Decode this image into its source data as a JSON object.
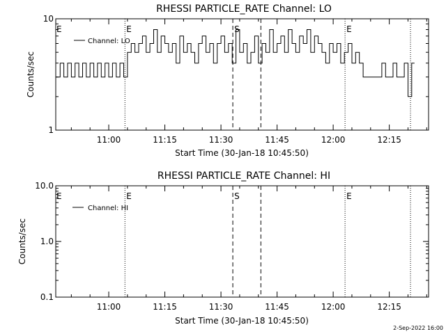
{
  "chart_data": [
    {
      "type": "line",
      "title": "RHESSI PARTICLE_RATE Channel: LO",
      "xlabel": "Start Time (30-Jan-18 10:45:50)",
      "ylabel": "Counts/sec",
      "yscale": "log",
      "xlim": [
        "10:45:50",
        "12:25:30"
      ],
      "ylim": [
        1,
        10
      ],
      "x_ticks": [
        "11:00",
        "11:15",
        "11:30",
        "11:45",
        "12:00",
        "12:15"
      ],
      "y_ticks": [
        "1",
        "10"
      ],
      "legend": {
        "entries": [
          "Channel: LO"
        ],
        "placement": "top-left"
      },
      "markers": [
        {
          "time": "11:04:20",
          "label": "E",
          "style": "dotted"
        },
        {
          "time": "11:33:10",
          "label": "S",
          "style": "dashed"
        },
        {
          "time": "11:40:40",
          "label": "",
          "style": "dashed"
        },
        {
          "time": "12:03:10",
          "label": "E",
          "style": "dotted"
        },
        {
          "time": "12:20:40",
          "label": "",
          "style": "dotted"
        }
      ],
      "series": [
        {
          "name": "Channel: LO",
          "x": [
            "10:45:50",
            "10:47:00",
            "10:48:00",
            "10:49:00",
            "10:50:00",
            "10:51:00",
            "10:52:00",
            "10:53:00",
            "10:54:00",
            "10:55:00",
            "10:56:00",
            "10:57:00",
            "10:58:00",
            "10:59:00",
            "11:00:00",
            "11:01:00",
            "11:02:00",
            "11:03:00",
            "11:04:00",
            "11:05:00",
            "11:06:00",
            "11:07:00",
            "11:08:00",
            "11:09:00",
            "11:10:00",
            "11:11:00",
            "11:12:00",
            "11:13:00",
            "11:14:00",
            "11:15:00",
            "11:16:00",
            "11:17:00",
            "11:18:00",
            "11:19:00",
            "11:20:00",
            "11:21:00",
            "11:22:00",
            "11:23:00",
            "11:24:00",
            "11:25:00",
            "11:26:00",
            "11:27:00",
            "11:28:00",
            "11:29:00",
            "11:30:00",
            "11:31:00",
            "11:32:00",
            "11:33:00",
            "11:34:00",
            "11:35:00",
            "11:36:00",
            "11:37:00",
            "11:38:00",
            "11:39:00",
            "11:40:00",
            "11:41:00",
            "11:42:00",
            "11:43:00",
            "11:44:00",
            "11:45:00",
            "11:46:00",
            "11:47:00",
            "11:48:00",
            "11:49:00",
            "11:50:00",
            "11:51:00",
            "11:52:00",
            "11:53:00",
            "11:54:00",
            "11:55:00",
            "11:56:00",
            "11:57:00",
            "11:58:00",
            "11:59:00",
            "12:00:00",
            "12:01:00",
            "12:02:00",
            "12:03:00",
            "12:04:00",
            "12:05:00",
            "12:06:00",
            "12:07:00",
            "12:08:00",
            "12:09:00",
            "12:10:00",
            "12:11:00",
            "12:12:00",
            "12:13:00",
            "12:14:00",
            "12:15:00",
            "12:16:00",
            "12:17:00",
            "12:18:00",
            "12:19:00",
            "12:20:00",
            "12:21:00"
          ],
          "values": [
            3,
            4,
            3,
            4,
            3,
            4,
            3,
            4,
            3,
            4,
            3,
            4,
            3,
            4,
            3,
            4,
            3,
            4,
            3,
            5,
            6,
            5,
            6,
            7,
            5,
            6,
            8,
            5,
            7,
            6,
            5,
            6,
            4,
            7,
            5,
            6,
            5,
            4,
            6,
            7,
            5,
            6,
            4,
            6,
            7,
            5,
            6,
            4,
            8,
            5,
            6,
            4,
            5,
            7,
            4,
            6,
            5,
            8,
            5,
            6,
            7,
            5,
            8,
            6,
            5,
            7,
            6,
            8,
            5,
            7,
            6,
            5,
            4,
            6,
            5,
            6,
            4,
            5,
            6,
            4,
            5,
            4,
            3,
            3,
            3,
            3,
            3,
            4,
            3,
            3,
            4,
            3,
            3,
            4,
            2,
            4
          ]
        }
      ]
    },
    {
      "type": "line",
      "title": "RHESSI PARTICLE_RATE Channel: HI",
      "xlabel": "Start Time (30-Jan-18 10:45:50)",
      "ylabel": "Counts/sec",
      "yscale": "log",
      "xlim": [
        "10:45:50",
        "12:25:30"
      ],
      "ylim": [
        0.1,
        10
      ],
      "x_ticks": [
        "11:00",
        "11:15",
        "11:30",
        "11:45",
        "12:00",
        "12:15"
      ],
      "y_ticks": [
        "0.1",
        "1.0",
        "10.0"
      ],
      "legend": {
        "entries": [
          "Channel: HI"
        ],
        "placement": "top-left"
      },
      "markers": [
        {
          "time": "11:04:20",
          "label": "E",
          "style": "dotted"
        },
        {
          "time": "11:33:10",
          "label": "S",
          "style": "dashed"
        },
        {
          "time": "11:40:40",
          "label": "",
          "style": "dashed"
        },
        {
          "time": "12:03:10",
          "label": "E",
          "style": "dotted"
        },
        {
          "time": "12:20:40",
          "label": "",
          "style": "dotted"
        }
      ],
      "series": [
        {
          "name": "Channel: HI",
          "x": [],
          "values": []
        }
      ]
    }
  ],
  "footer": {
    "timestamp": "2-Sep-2022 16:00"
  }
}
